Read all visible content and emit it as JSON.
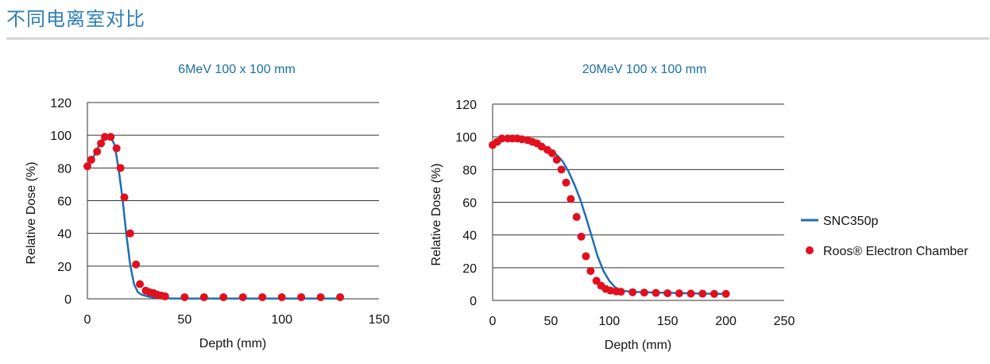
{
  "page": {
    "title": "不同电离室对比"
  },
  "legend": {
    "line_label": "SNC350p",
    "dot_label": "Roos® Electron Chamber"
  },
  "colors": {
    "line": "#1f6fb0",
    "dots": "#e0101e",
    "grid": "#333333"
  },
  "chart_data": [
    {
      "type": "scatter",
      "title": "6MeV 100 x 100 mm",
      "xlabel": "Depth (mm)",
      "ylabel": "Relative Dose (%)",
      "xlim": [
        0,
        150
      ],
      "ylim": [
        0,
        120
      ],
      "xticks": [
        0,
        50,
        100,
        150
      ],
      "yticks": [
        0,
        20,
        40,
        60,
        80,
        100,
        120
      ],
      "grid": "horizontal",
      "series": [
        {
          "name": "SNC350p",
          "kind": "line",
          "x": [
            0,
            2,
            4,
            6,
            8,
            10,
            12,
            14,
            16,
            18,
            20,
            22,
            24,
            26,
            28,
            30,
            32,
            34,
            36,
            38,
            40,
            45,
            50,
            60,
            80,
            100,
            130
          ],
          "y": [
            80,
            84,
            89,
            94,
            98,
            99,
            99,
            94,
            80,
            62,
            40,
            21,
            9,
            4,
            2.5,
            1.8,
            1.2,
            0.8,
            0.6,
            0.4,
            0.3,
            0.2,
            0.2,
            0.2,
            0.2,
            0.2,
            0.2
          ]
        },
        {
          "name": "Roos® Electron Chamber",
          "kind": "points",
          "x": [
            0,
            2,
            5,
            7,
            9,
            12,
            15,
            17,
            19,
            22,
            25,
            27,
            30,
            32,
            34,
            36,
            38,
            40,
            50,
            60,
            70,
            80,
            90,
            100,
            110,
            120,
            130
          ],
          "y": [
            81,
            85,
            90,
            95,
            99,
            99,
            92,
            80,
            62,
            40,
            21,
            9,
            5,
            4,
            3.5,
            2.5,
            2,
            1.5,
            1,
            1,
            1,
            1,
            1,
            1,
            1,
            1,
            1
          ]
        }
      ]
    },
    {
      "type": "scatter",
      "title": "20MeV 100 x 100 mm",
      "xlabel": "Depth (mm)",
      "ylabel": "Relative Dose (%)",
      "xlim": [
        0,
        250
      ],
      "ylim": [
        0,
        120
      ],
      "xticks": [
        0,
        50,
        100,
        150,
        200,
        250
      ],
      "yticks": [
        0,
        20,
        40,
        60,
        80,
        100,
        120
      ],
      "grid": "horizontal",
      "series": [
        {
          "name": "SNC350p",
          "kind": "line",
          "x": [
            0,
            5,
            10,
            15,
            20,
            25,
            30,
            35,
            40,
            45,
            50,
            55,
            60,
            65,
            70,
            75,
            80,
            85,
            90,
            95,
            100,
            105,
            110,
            120,
            140,
            160,
            180,
            200
          ],
          "y": [
            96,
            98,
            99,
            99.5,
            99.5,
            99,
            98.5,
            97.5,
            96,
            94,
            92,
            89,
            85,
            79,
            71,
            62,
            51,
            39,
            27,
            18,
            12,
            8,
            6,
            5.2,
            4.8,
            4.5,
            4.2,
            4
          ]
        },
        {
          "name": "Roos® Electron Chamber",
          "kind": "points",
          "x": [
            0,
            4,
            8,
            13,
            17,
            21,
            25,
            30,
            34,
            38,
            42,
            47,
            51,
            55,
            59,
            63,
            67,
            72,
            76,
            80,
            84,
            89,
            93,
            97,
            101,
            106,
            110,
            120,
            130,
            140,
            150,
            160,
            170,
            180,
            190,
            200
          ],
          "y": [
            95,
            97,
            99,
            99,
            99,
            99,
            98.5,
            98,
            97,
            96,
            94,
            92,
            90,
            86,
            80,
            72,
            62,
            51,
            39,
            27,
            18,
            12,
            9,
            7,
            6,
            5.5,
            5.3,
            5,
            4.8,
            4.6,
            4.4,
            4.3,
            4.2,
            4.1,
            4,
            4
          ]
        }
      ]
    }
  ]
}
